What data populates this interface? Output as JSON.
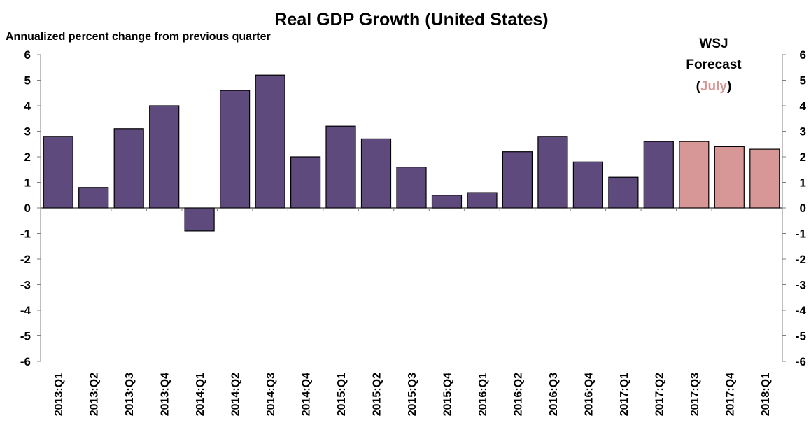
{
  "chart_data": {
    "type": "bar",
    "title": "Real GDP Growth (United States)",
    "subtitle": "Annualized percent change from previous quarter",
    "categories": [
      "2013:Q1",
      "2013:Q2",
      "2013:Q3",
      "2013:Q4",
      "2014:Q1",
      "2014:Q2",
      "2014:Q3",
      "2014:Q4",
      "2015:Q1",
      "2015:Q2",
      "2015:Q3",
      "2015:Q4",
      "2016:Q1",
      "2016:Q2",
      "2016:Q3",
      "2016:Q4",
      "2017:Q1",
      "2017:Q2",
      "2017:Q3",
      "2017:Q4",
      "2018:Q1"
    ],
    "values": [
      2.8,
      0.8,
      3.1,
      4.0,
      -0.9,
      4.6,
      5.2,
      2.0,
      3.2,
      2.7,
      1.6,
      0.5,
      0.6,
      2.2,
      2.8,
      1.8,
      1.2,
      2.6,
      2.6,
      2.4,
      2.3
    ],
    "forecast_from_index": 18,
    "ylim": [
      -6,
      6
    ],
    "yticks": [
      6,
      5,
      4,
      3,
      2,
      1,
      0,
      -1,
      -2,
      -3,
      -4,
      -5,
      -6
    ],
    "dual_y_axis": true,
    "grid": false,
    "colors": {
      "actual": "#5e4a7c",
      "forecast": "#d79797",
      "july": "#d79797"
    },
    "annotation": {
      "line1": "WSJ",
      "line2": "Forecast",
      "open": "(",
      "highlight": "July",
      "close": ")"
    }
  }
}
